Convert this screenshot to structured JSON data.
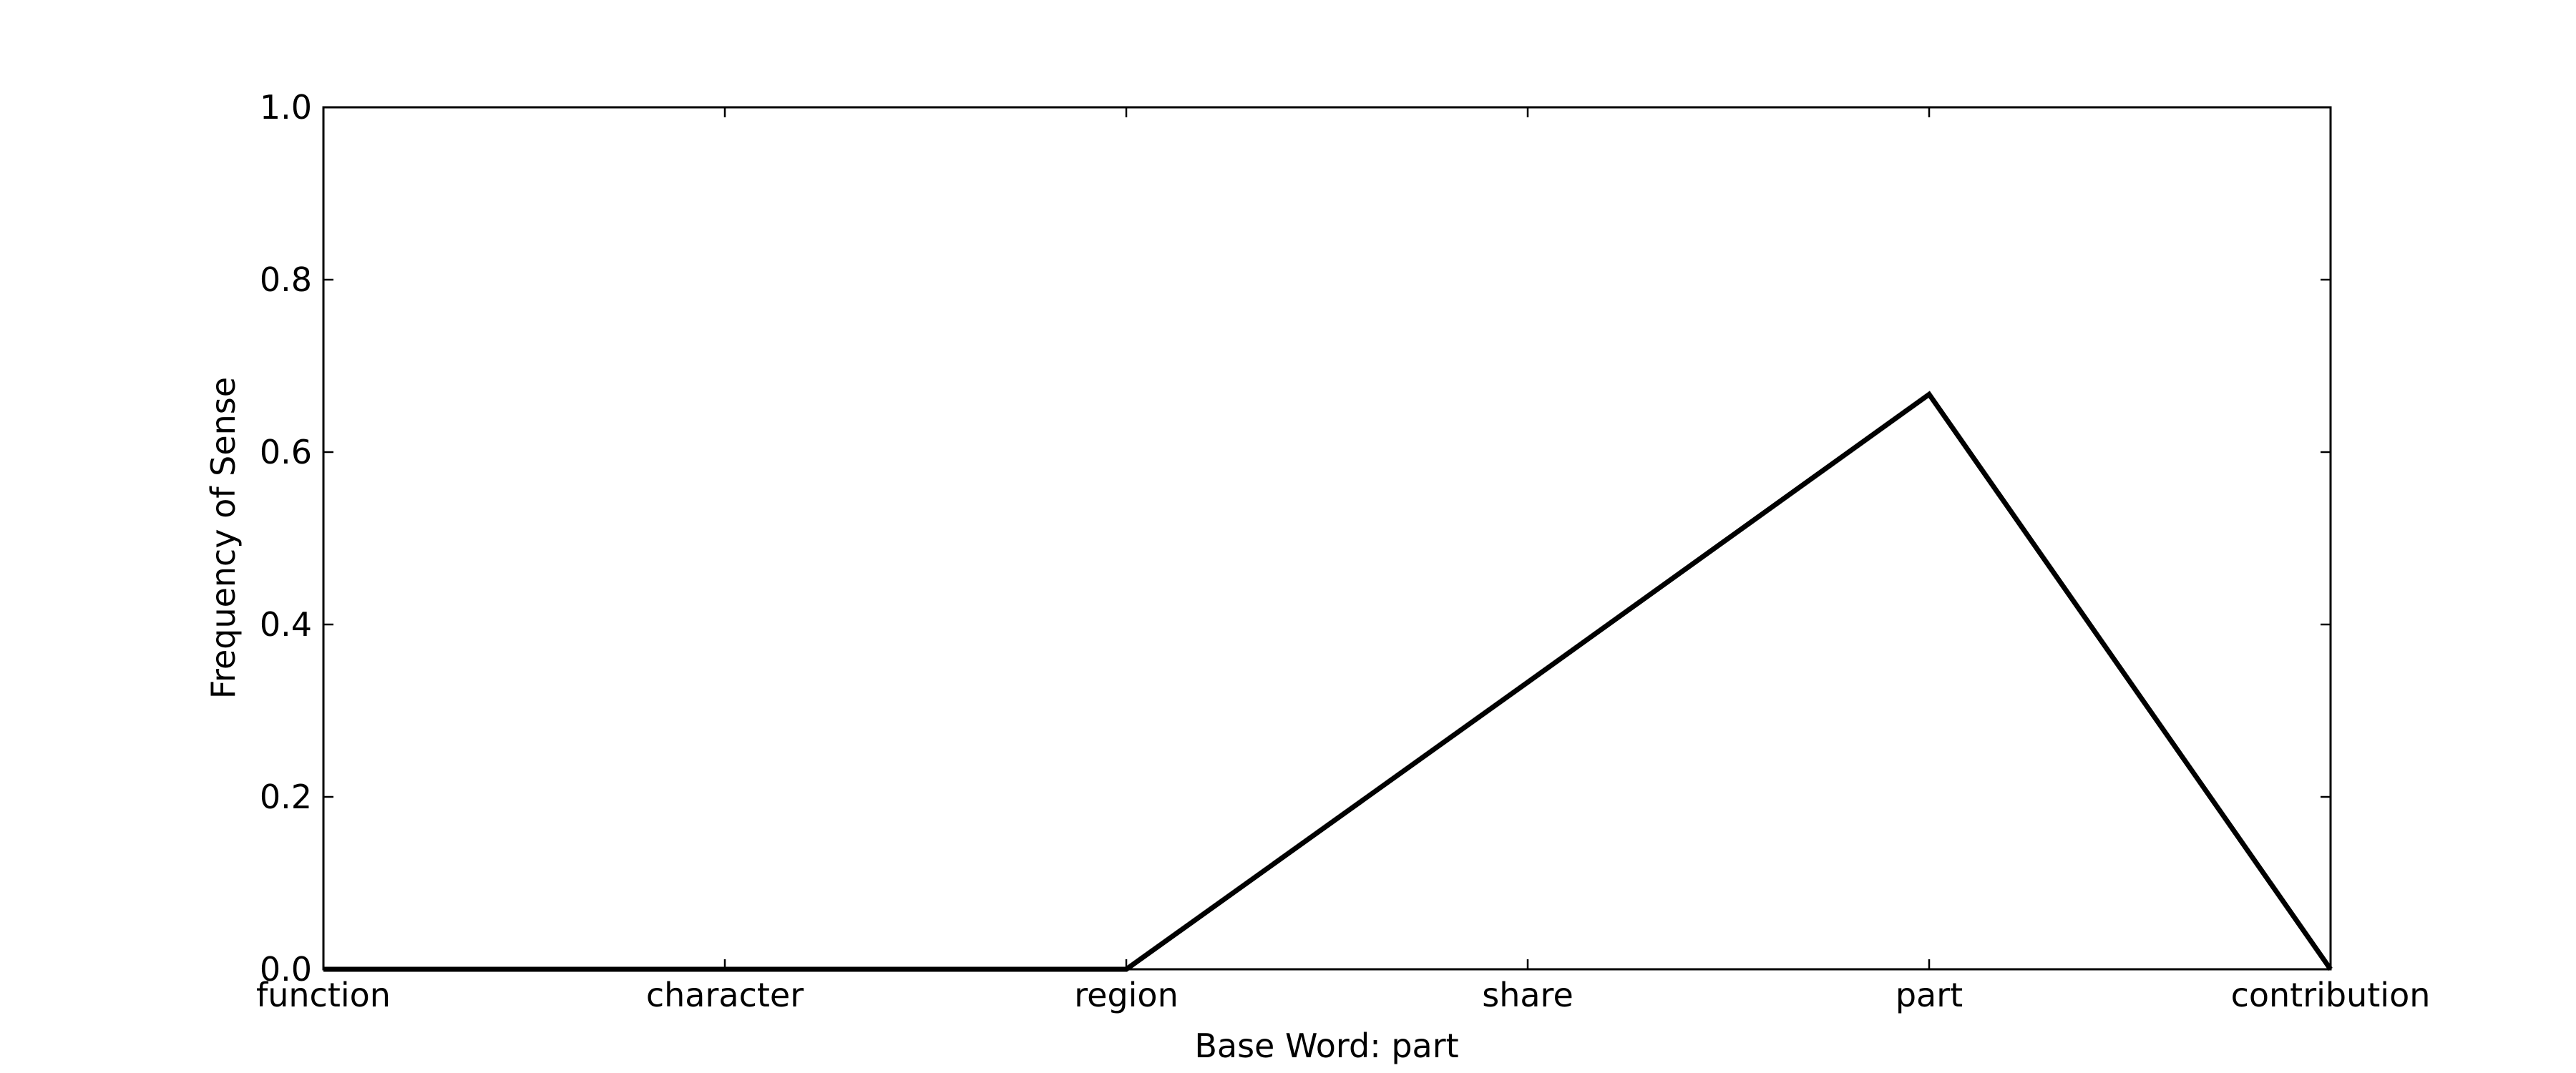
{
  "chart_data": {
    "type": "line",
    "title": "",
    "xlabel": "Base Word: part",
    "ylabel": "Frequency of Sense",
    "categories": [
      "function",
      "character",
      "region",
      "share",
      "part",
      "contribution"
    ],
    "series": [
      {
        "values": [
          0.0,
          0.0,
          0.0,
          0.333,
          0.667,
          0.0
        ]
      }
    ],
    "ylim": [
      0,
      1.0
    ],
    "yticks": [
      "0.0",
      "0.2",
      "0.4",
      "0.6",
      "0.8",
      "1.0"
    ],
    "ytick_values": [
      0.0,
      0.2,
      0.4,
      0.6,
      0.8,
      1.0
    ],
    "grid": false,
    "legend": "none",
    "line_color": "#000000"
  }
}
